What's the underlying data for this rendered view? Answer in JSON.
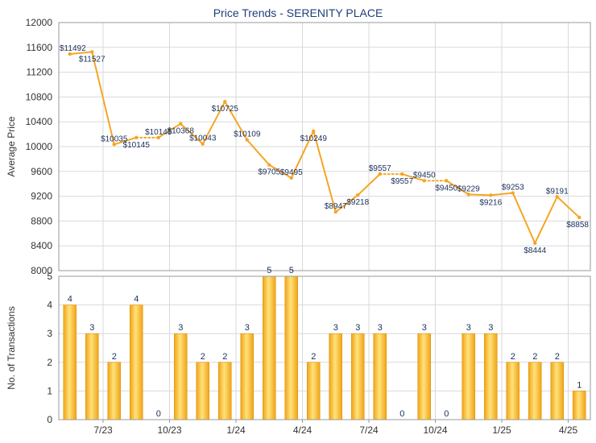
{
  "chart_data": [
    {
      "type": "line",
      "title": "Price Trends - SERENITY PLACE",
      "ylabel": "Average Price",
      "ylim": [
        8000,
        12000
      ],
      "yticks": [
        8000,
        8400,
        8800,
        9200,
        9600,
        10000,
        10400,
        10800,
        11200,
        11600,
        12000
      ],
      "y_tick_labels": [
        "8000",
        "8400",
        "8800",
        "9200",
        "9600",
        "10000",
        "10400",
        "10800",
        "11200",
        "11600",
        "12000"
      ],
      "grid": true,
      "color": "#f5a623",
      "series": [
        {
          "values": [
            11492,
            11527,
            10035,
            10145,
            10145,
            10368,
            10043,
            10725,
            10109,
            9705,
            9495,
            10249,
            8947,
            9218,
            9557,
            9557,
            9450,
            9450,
            9229,
            9216,
            9253,
            8444,
            9191,
            8858
          ],
          "labels": [
            "$11492",
            "$11527",
            "$10035",
            "$10145",
            "$10145",
            "$10368",
            "$10043",
            "$10725",
            "$10109",
            "$9705",
            "$9495",
            "$10249",
            "$8947",
            "$9218",
            "$9557",
            "$9557",
            "$9450",
            "$9450",
            "$9229",
            "$9216",
            "$9253",
            "$8444",
            "$9191",
            "$8858"
          ],
          "carried_forward": [
            false,
            false,
            false,
            false,
            true,
            false,
            false,
            false,
            false,
            false,
            false,
            false,
            false,
            false,
            false,
            true,
            false,
            true,
            false,
            false,
            false,
            false,
            false,
            false
          ]
        }
      ]
    },
    {
      "type": "bar",
      "ylabel": "No. of Transactions",
      "ylim": [
        0,
        5
      ],
      "yticks": [
        0,
        1,
        2,
        3,
        4,
        5
      ],
      "y_tick_labels": [
        "0",
        "1",
        "2",
        "3",
        "4",
        "5"
      ],
      "grid": true,
      "color": "#f5a623",
      "x_tick_labels": [
        "7/23",
        "10/23",
        "1/24",
        "4/24",
        "7/24",
        "10/24",
        "1/25",
        "4/25"
      ],
      "x_tick_months": [
        2,
        5,
        8,
        11,
        14,
        17,
        20,
        23
      ],
      "values": [
        4,
        3,
        2,
        4,
        0,
        3,
        2,
        2,
        3,
        5,
        5,
        2,
        3,
        3,
        3,
        0,
        3,
        0,
        3,
        3,
        2,
        2,
        2,
        1
      ],
      "value_labels": [
        "4",
        "3",
        "2",
        "4",
        "0",
        "3",
        "2",
        "2",
        "3",
        "5",
        "5",
        "2",
        "3",
        "3",
        "3",
        "0",
        "3",
        "0",
        "3",
        "3",
        "2",
        "2",
        "2",
        "1"
      ]
    }
  ]
}
